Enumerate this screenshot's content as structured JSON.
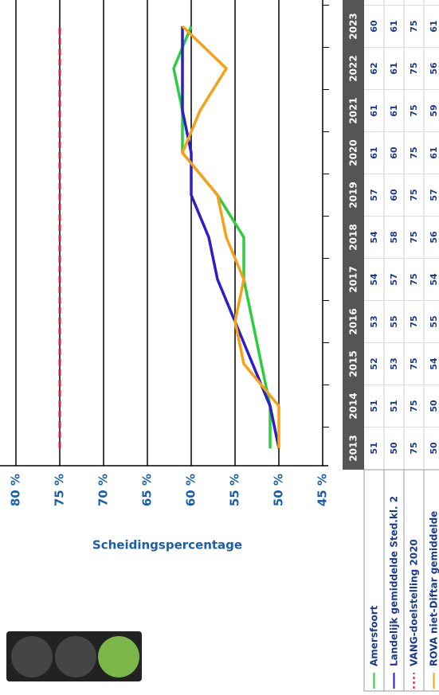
{
  "chart_data": {
    "type": "line",
    "ylabel": "Scheidingspercentage",
    "categories": [
      "2013",
      "2014",
      "2015",
      "2016",
      "2017",
      "2018",
      "2019",
      "2020",
      "2021",
      "2022",
      "2023"
    ],
    "series": [
      {
        "name": "Amersfoort",
        "color": "#2ecc40",
        "dashed": false,
        "values": [
          51,
          51,
          52,
          53,
          54,
          54,
          57,
          61,
          61,
          62,
          60
        ]
      },
      {
        "name": "Landelijk gemiddelde Sted.kl. 2",
        "color": "#2a1fc8",
        "dashed": false,
        "values": [
          50,
          51,
          53,
          55,
          57,
          58,
          60,
          60,
          61,
          61,
          61
        ]
      },
      {
        "name": "VANG-doelstelling 2020",
        "color": "#d0213a",
        "dashed": true,
        "values": [
          75,
          75,
          75,
          75,
          75,
          75,
          75,
          75,
          75,
          75,
          75
        ]
      },
      {
        "name": "ROVA niet-Diftar gemiddelde",
        "color": "#f7a11a",
        "dashed": false,
        "values": [
          50,
          50,
          54,
          55,
          54,
          56,
          57,
          61,
          59,
          56,
          61
        ]
      }
    ],
    "ylim": [
      45,
      80
    ],
    "yticks": [
      {
        "value": 80,
        "label": "80 %"
      },
      {
        "value": 75,
        "label": "75 %"
      },
      {
        "value": 70,
        "label": "70 %"
      },
      {
        "value": 65,
        "label": "65 %"
      },
      {
        "value": 60,
        "label": "60 %"
      },
      {
        "value": 55,
        "label": "55 %"
      },
      {
        "value": 50,
        "label": "50 %"
      },
      {
        "value": 45,
        "label": "45 %"
      }
    ],
    "grid": true
  }
}
